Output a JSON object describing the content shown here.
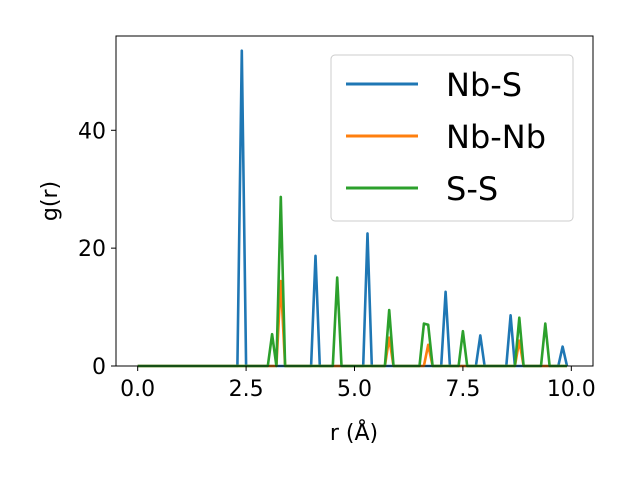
{
  "chart_data": {
    "type": "line",
    "title": "",
    "xlabel": "r (Å)",
    "ylabel": "g(r)",
    "xlim": [
      -0.5,
      10.5
    ],
    "ylim": [
      0,
      56
    ],
    "xticks": [
      0.0,
      2.5,
      5.0,
      7.5,
      10.0
    ],
    "xtick_labels": [
      "0.0",
      "2.5",
      "5.0",
      "7.5",
      "10.0"
    ],
    "yticks": [
      0,
      20,
      40
    ],
    "ytick_labels": [
      "0",
      "20",
      "40"
    ],
    "grid": false,
    "legend_position": "top-right",
    "series": [
      {
        "name": "Nb-S",
        "color": "#1f77b4",
        "x": [
          0.0,
          2.3,
          2.4,
          2.5,
          4.0,
          4.1,
          4.2,
          5.2,
          5.3,
          5.4,
          7.0,
          7.1,
          7.2,
          7.8,
          7.9,
          8.0,
          8.5,
          8.6,
          8.7,
          9.7,
          9.8,
          9.9
        ],
        "y": [
          0,
          0,
          53.5,
          0,
          0,
          18.7,
          0,
          0,
          22.5,
          0,
          0,
          12.6,
          0,
          0,
          5.2,
          0,
          0,
          8.6,
          0,
          0,
          3.3,
          0
        ]
      },
      {
        "name": "Nb-Nb",
        "color": "#ff7f0e",
        "x": [
          0.0,
          3.2,
          3.3,
          3.4,
          5.7,
          5.8,
          5.9,
          6.6,
          6.7,
          6.8,
          8.7,
          8.8,
          8.9,
          9.9
        ],
        "y": [
          0,
          0,
          14.4,
          0,
          0,
          4.8,
          0,
          0,
          3.6,
          0,
          0,
          4.3,
          0,
          0
        ]
      },
      {
        "name": "S-S",
        "color": "#2ca02c",
        "x": [
          0.0,
          3.0,
          3.1,
          3.2,
          3.3,
          3.4,
          4.5,
          4.6,
          4.7,
          5.7,
          5.8,
          5.9,
          6.5,
          6.6,
          6.7,
          6.8,
          7.4,
          7.5,
          7.6,
          8.7,
          8.8,
          8.9,
          9.3,
          9.4,
          9.5,
          9.9
        ],
        "y": [
          0,
          0,
          5.4,
          0,
          28.7,
          0,
          0,
          15.0,
          0,
          0,
          9.5,
          0,
          0,
          7.2,
          7.0,
          0,
          0,
          5.9,
          0,
          0,
          8.2,
          0,
          0,
          7.2,
          0,
          0
        ]
      }
    ]
  }
}
